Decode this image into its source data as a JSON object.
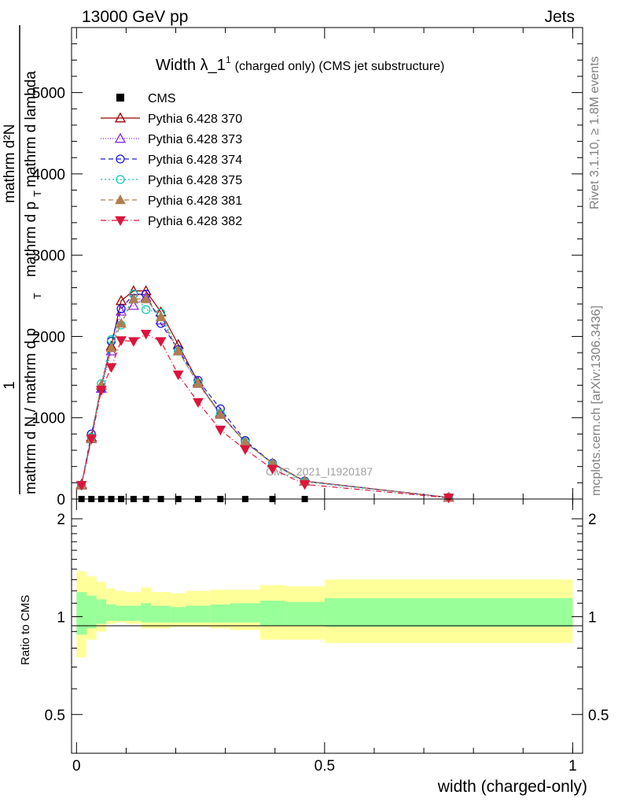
{
  "header": {
    "left": "13000 GeV pp",
    "right": "Jets"
  },
  "side_labels": {
    "rivet": "Rivet 3.1.10, ≥ 1.8M events",
    "mcplots": "mcplots.cern.ch [arXiv:1306.3436]"
  },
  "chart_data": [
    {
      "type": "line",
      "title": "Width λ_1¹ (charged only) (CMS jet substructure)",
      "title_main": "Width λ_1",
      "title_sup": "1",
      "title_rest": "(charged only) (CMS jet substructure)",
      "ylabel_parts": [
        "1",
        "mathrm d N / mathrm d p",
        "T",
        "mathrm d N",
        "mathrm d p",
        "T",
        "mathrm d lambda"
      ],
      "ylabel_numerator": "mathrm d²N",
      "watermark": "CMS_2021_I1920187",
      "xlim": [
        -0.01,
        1.02
      ],
      "ylim": [
        0,
        5800
      ],
      "y_ticks": [
        0,
        1000,
        2000,
        3000,
        4000,
        5000
      ],
      "y_tick_labels": [
        "0",
        "1000",
        "2000",
        "3000",
        "4000",
        "5000"
      ],
      "legend_position": "top-left",
      "cms_points": {
        "name": "CMS",
        "x": [
          0.01,
          0.03,
          0.05,
          0.07,
          0.09,
          0.115,
          0.14,
          0.17,
          0.205,
          0.245,
          0.29,
          0.34,
          0.395,
          0.46
        ],
        "y": [
          0,
          0,
          0,
          0,
          0,
          0,
          0,
          0,
          0,
          0,
          0,
          0,
          0,
          0
        ]
      },
      "series": [
        {
          "name": "Pythia 6.428 370",
          "color": "#9a0000",
          "marker": "triangle-open",
          "dash": "",
          "x": [
            0.01,
            0.03,
            0.05,
            0.07,
            0.09,
            0.115,
            0.14,
            0.17,
            0.205,
            0.245,
            0.29,
            0.34,
            0.395,
            0.46,
            0.75
          ],
          "y": [
            180,
            760,
            1400,
            1880,
            2440,
            2560,
            2560,
            2300,
            1900,
            1440,
            1040,
            700,
            440,
            220,
            20
          ]
        },
        {
          "name": "Pythia 6.428 373",
          "color": "#8a2be2",
          "marker": "triangle-open",
          "dash": "1,2",
          "x": [
            0.01,
            0.03,
            0.05,
            0.07,
            0.09,
            0.115,
            0.14,
            0.17,
            0.205,
            0.245,
            0.29,
            0.34,
            0.395,
            0.46,
            0.75
          ],
          "y": [
            170,
            740,
            1360,
            1820,
            2310,
            2380,
            2480,
            2200,
            1820,
            1420,
            1060,
            700,
            440,
            220,
            20
          ]
        },
        {
          "name": "Pythia 6.428 374",
          "color": "#1c1cd6",
          "marker": "circle-open",
          "dash": "6,4",
          "x": [
            0.01,
            0.03,
            0.05,
            0.07,
            0.09,
            0.115,
            0.14,
            0.17,
            0.205,
            0.245,
            0.29,
            0.34,
            0.395,
            0.46,
            0.75
          ],
          "y": [
            170,
            800,
            1360,
            1940,
            2340,
            2520,
            2520,
            2160,
            1840,
            1460,
            1110,
            720,
            440,
            220,
            20
          ]
        },
        {
          "name": "Pythia 6.428 375",
          "color": "#10c8b4",
          "marker": "circle-open",
          "dash": "2,3",
          "x": [
            0.01,
            0.03,
            0.05,
            0.07,
            0.09,
            0.115,
            0.14,
            0.17,
            0.205,
            0.245,
            0.29,
            0.34,
            0.395,
            0.46,
            0.75
          ],
          "y": [
            170,
            760,
            1420,
            1960,
            2140,
            2520,
            2330,
            2290,
            1820,
            1430,
            1050,
            700,
            430,
            210,
            20
          ]
        },
        {
          "name": "Pythia 6.428 381",
          "color": "#b07e50",
          "marker": "triangle-filled",
          "dash": "6,4",
          "x": [
            0.01,
            0.03,
            0.05,
            0.07,
            0.09,
            0.115,
            0.14,
            0.17,
            0.205,
            0.245,
            0.29,
            0.34,
            0.395,
            0.46,
            0.75
          ],
          "y": [
            170,
            740,
            1400,
            1860,
            2160,
            2460,
            2460,
            2240,
            1820,
            1420,
            1040,
            700,
            440,
            220,
            20
          ]
        },
        {
          "name": "Pythia 6.428 382",
          "color": "#dc143c",
          "marker": "triangle-down-filled",
          "dash": "7,3,1,3",
          "x": [
            0.01,
            0.03,
            0.05,
            0.07,
            0.09,
            0.115,
            0.14,
            0.17,
            0.205,
            0.245,
            0.29,
            0.34,
            0.395,
            0.46,
            0.75
          ],
          "y": [
            170,
            740,
            1340,
            1620,
            1950,
            1940,
            2030,
            1940,
            1530,
            1190,
            850,
            610,
            370,
            180,
            15
          ]
        }
      ]
    },
    {
      "type": "area",
      "ylabel": "Ratio to CMS",
      "xlabel": "width (charged-only)",
      "xlim": [
        -0.01,
        1.02
      ],
      "ylim": [
        0.38,
        2.3
      ],
      "y_ticks": [
        0.5,
        1,
        2
      ],
      "y_tick_labels": [
        "0.5",
        "1",
        "2"
      ],
      "x_ticks": [
        0,
        0.5,
        1
      ],
      "x_tick_labels": [
        "0",
        "0.5",
        "1"
      ],
      "bins": [
        0,
        0.02,
        0.04,
        0.06,
        0.08,
        0.1,
        0.13,
        0.15,
        0.19,
        0.22,
        0.27,
        0.31,
        0.37,
        0.42,
        0.5,
        1.0
      ],
      "yellow_up": [
        1.38,
        1.33,
        1.28,
        1.22,
        1.2,
        1.19,
        1.23,
        1.19,
        1.18,
        1.2,
        1.21,
        1.21,
        1.25,
        1.24,
        1.3
      ],
      "yellow_down": [
        0.75,
        0.85,
        0.9,
        0.95,
        0.96,
        0.95,
        0.92,
        0.92,
        0.93,
        0.93,
        0.92,
        0.91,
        0.85,
        0.85,
        0.83
      ],
      "green_up": [
        1.19,
        1.16,
        1.13,
        1.09,
        1.08,
        1.08,
        1.1,
        1.08,
        1.07,
        1.08,
        1.09,
        1.1,
        1.12,
        1.11,
        1.14
      ],
      "green_down": [
        0.88,
        0.92,
        0.95,
        0.97,
        0.97,
        0.97,
        0.96,
        0.96,
        0.96,
        0.96,
        0.96,
        0.96,
        0.94,
        0.94,
        0.93
      ]
    }
  ]
}
